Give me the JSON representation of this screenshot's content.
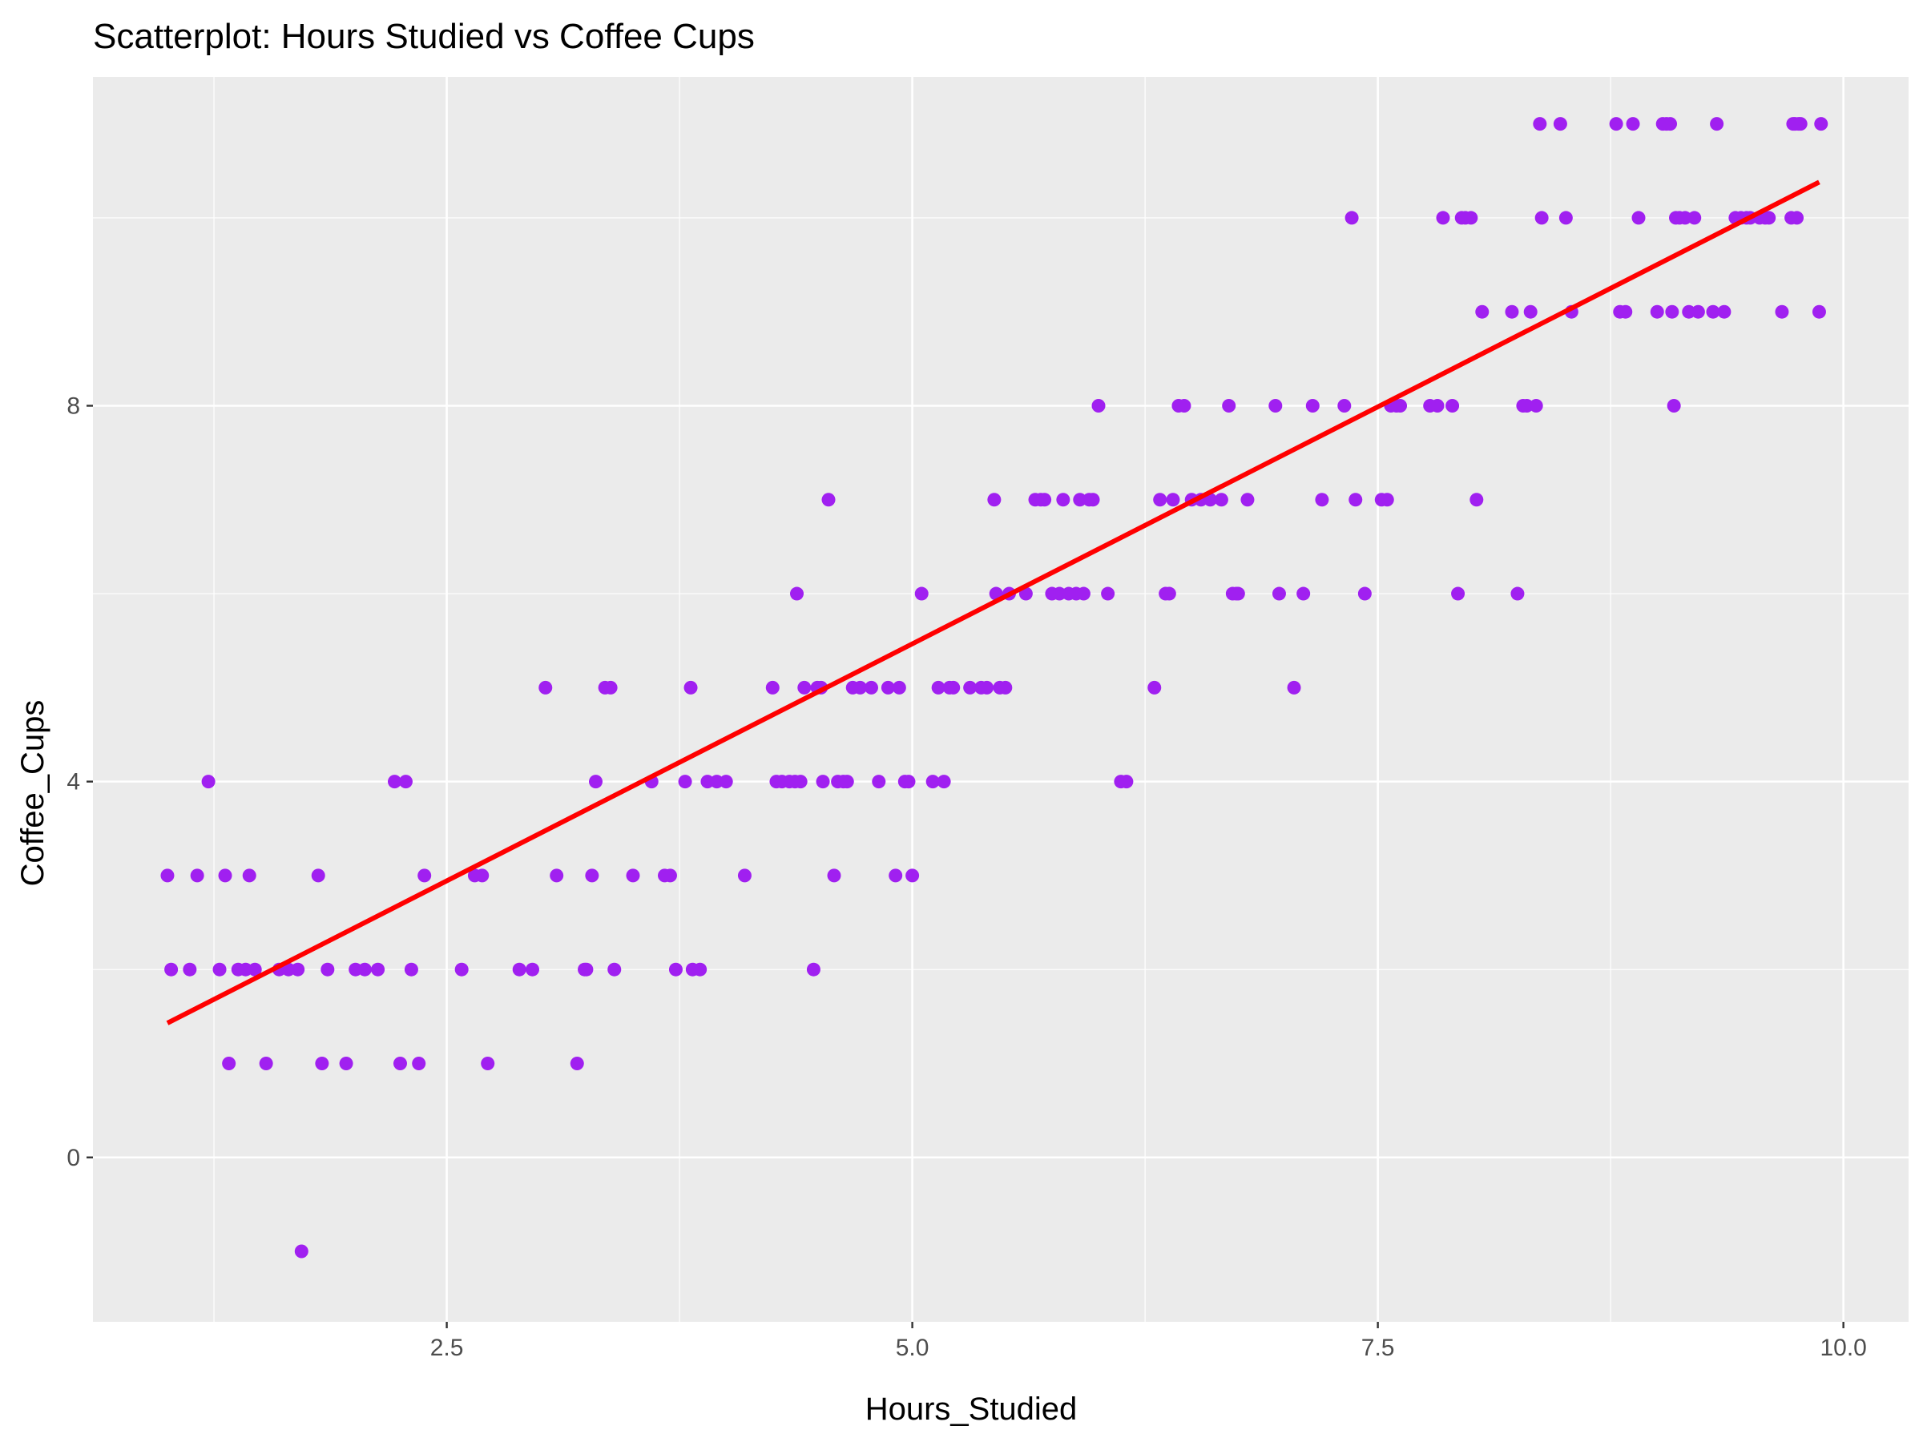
{
  "chart_data": {
    "type": "scatter",
    "title": "Scatterplot: Hours Studied vs Coffee Cups",
    "xlabel": "Hours_Studied",
    "ylabel": "Coffee_Cups",
    "xlim": [
      0.6,
      10.35
    ],
    "ylim": [
      -1.75,
      11.5
    ],
    "x_ticks": [
      2.5,
      5.0,
      7.5,
      10.0
    ],
    "x_tick_labels": [
      "2.5",
      "5.0",
      "7.5",
      "10.0"
    ],
    "y_ticks": [
      0,
      4,
      8
    ],
    "y_tick_labels": [
      "0",
      "4",
      "8"
    ],
    "grid": true,
    "legend": "none",
    "colors": {
      "panel": "#ebebeb",
      "grid": "#ffffff",
      "points": "#a020f0",
      "fit_line": "#ff0000",
      "tick": "#333333"
    },
    "series": [
      {
        "kind": "points",
        "points": [
          [
            1.0,
            3
          ],
          [
            1.02,
            2
          ],
          [
            1.12,
            2
          ],
          [
            1.16,
            3
          ],
          [
            1.22,
            4
          ],
          [
            1.28,
            2
          ],
          [
            1.31,
            3
          ],
          [
            1.33,
            1
          ],
          [
            1.38,
            2
          ],
          [
            1.42,
            2
          ],
          [
            1.44,
            3
          ],
          [
            1.47,
            2
          ],
          [
            1.53,
            1
          ],
          [
            1.6,
            2
          ],
          [
            1.65,
            2
          ],
          [
            1.7,
            2
          ],
          [
            1.72,
            -1
          ],
          [
            1.81,
            3
          ],
          [
            1.83,
            1
          ],
          [
            1.86,
            2
          ],
          [
            1.96,
            1
          ],
          [
            2.01,
            2
          ],
          [
            2.06,
            2
          ],
          [
            2.13,
            2
          ],
          [
            2.22,
            4
          ],
          [
            2.25,
            1
          ],
          [
            2.28,
            4
          ],
          [
            2.31,
            2
          ],
          [
            2.35,
            1
          ],
          [
            2.38,
            3
          ],
          [
            2.58,
            2
          ],
          [
            2.65,
            3
          ],
          [
            2.69,
            3
          ],
          [
            2.72,
            1
          ],
          [
            2.89,
            2
          ],
          [
            2.96,
            2
          ],
          [
            3.03,
            5
          ],
          [
            3.09,
            3
          ],
          [
            3.2,
            1
          ],
          [
            3.24,
            2
          ],
          [
            3.25,
            2
          ],
          [
            3.28,
            3
          ],
          [
            3.3,
            4
          ],
          [
            3.35,
            5
          ],
          [
            3.38,
            5
          ],
          [
            3.4,
            2
          ],
          [
            3.5,
            3
          ],
          [
            3.6,
            4
          ],
          [
            3.67,
            3
          ],
          [
            3.7,
            3
          ],
          [
            3.73,
            2
          ],
          [
            3.78,
            4
          ],
          [
            3.81,
            5
          ],
          [
            3.82,
            2
          ],
          [
            3.86,
            2
          ],
          [
            3.9,
            4
          ],
          [
            3.95,
            4
          ],
          [
            4.0,
            4
          ],
          [
            4.1,
            3
          ],
          [
            4.25,
            5
          ],
          [
            4.27,
            4
          ],
          [
            4.3,
            4
          ],
          [
            4.34,
            4
          ],
          [
            4.37,
            4
          ],
          [
            4.38,
            6
          ],
          [
            4.4,
            4
          ],
          [
            4.42,
            5
          ],
          [
            4.47,
            2
          ],
          [
            4.49,
            5
          ],
          [
            4.51,
            5
          ],
          [
            4.52,
            4
          ],
          [
            4.55,
            7
          ],
          [
            4.58,
            3
          ],
          [
            4.6,
            4
          ],
          [
            4.63,
            4
          ],
          [
            4.65,
            4
          ],
          [
            4.68,
            5
          ],
          [
            4.72,
            5
          ],
          [
            4.78,
            5
          ],
          [
            4.82,
            4
          ],
          [
            4.87,
            5
          ],
          [
            4.91,
            3
          ],
          [
            4.93,
            5
          ],
          [
            4.96,
            4
          ],
          [
            4.98,
            4
          ],
          [
            5.0,
            3
          ],
          [
            5.05,
            6
          ],
          [
            5.11,
            4
          ],
          [
            5.14,
            5
          ],
          [
            5.17,
            4
          ],
          [
            5.2,
            5
          ],
          [
            5.22,
            5
          ],
          [
            5.31,
            5
          ],
          [
            5.37,
            5
          ],
          [
            5.4,
            5
          ],
          [
            5.44,
            7
          ],
          [
            5.45,
            6
          ],
          [
            5.47,
            5
          ],
          [
            5.5,
            5
          ],
          [
            5.52,
            6
          ],
          [
            5.61,
            6
          ],
          [
            5.66,
            7
          ],
          [
            5.69,
            7
          ],
          [
            5.71,
            7
          ],
          [
            5.75,
            6
          ],
          [
            5.79,
            6
          ],
          [
            5.81,
            7
          ],
          [
            5.84,
            6
          ],
          [
            5.88,
            6
          ],
          [
            5.9,
            7
          ],
          [
            5.92,
            6
          ],
          [
            5.95,
            7
          ],
          [
            5.97,
            7
          ],
          [
            6.0,
            8
          ],
          [
            6.05,
            6
          ],
          [
            6.12,
            4
          ],
          [
            6.15,
            4
          ],
          [
            6.3,
            5
          ],
          [
            6.33,
            7
          ],
          [
            6.36,
            6
          ],
          [
            6.38,
            6
          ],
          [
            6.4,
            7
          ],
          [
            6.43,
            8
          ],
          [
            6.46,
            8
          ],
          [
            6.5,
            7
          ],
          [
            6.55,
            7
          ],
          [
            6.6,
            7
          ],
          [
            6.66,
            7
          ],
          [
            6.7,
            8
          ],
          [
            6.72,
            6
          ],
          [
            6.74,
            6
          ],
          [
            6.75,
            6
          ],
          [
            6.8,
            7
          ],
          [
            6.95,
            8
          ],
          [
            6.97,
            6
          ],
          [
            7.05,
            5
          ],
          [
            7.1,
            6
          ],
          [
            7.15,
            8
          ],
          [
            7.2,
            7
          ],
          [
            7.32,
            8
          ],
          [
            7.36,
            10
          ],
          [
            7.38,
            7
          ],
          [
            7.43,
            6
          ],
          [
            7.52,
            7
          ],
          [
            7.55,
            7
          ],
          [
            7.57,
            8
          ],
          [
            7.6,
            8
          ],
          [
            7.62,
            8
          ],
          [
            7.78,
            8
          ],
          [
            7.82,
            8
          ],
          [
            7.85,
            10
          ],
          [
            7.9,
            8
          ],
          [
            7.93,
            6
          ],
          [
            7.95,
            10
          ],
          [
            7.97,
            10
          ],
          [
            8.0,
            10
          ],
          [
            8.03,
            7
          ],
          [
            8.06,
            9
          ],
          [
            8.22,
            9
          ],
          [
            8.25,
            6
          ],
          [
            8.28,
            8
          ],
          [
            8.3,
            8
          ],
          [
            8.32,
            9
          ],
          [
            8.35,
            8
          ],
          [
            8.37,
            11
          ],
          [
            8.38,
            10
          ],
          [
            8.48,
            11
          ],
          [
            8.51,
            10
          ],
          [
            8.54,
            9
          ],
          [
            8.78,
            11
          ],
          [
            8.8,
            9
          ],
          [
            8.83,
            9
          ],
          [
            8.87,
            11
          ],
          [
            8.9,
            10
          ],
          [
            9.0,
            9
          ],
          [
            9.03,
            11
          ],
          [
            9.05,
            11
          ],
          [
            9.07,
            11
          ],
          [
            9.08,
            9
          ],
          [
            9.09,
            8
          ],
          [
            9.1,
            10
          ],
          [
            9.12,
            10
          ],
          [
            9.15,
            10
          ],
          [
            9.17,
            9
          ],
          [
            9.2,
            10
          ],
          [
            9.22,
            9
          ],
          [
            9.3,
            9
          ],
          [
            9.32,
            11
          ],
          [
            9.36,
            9
          ],
          [
            9.42,
            10
          ],
          [
            9.45,
            10
          ],
          [
            9.48,
            10
          ],
          [
            9.5,
            10
          ],
          [
            9.55,
            10
          ],
          [
            9.58,
            10
          ],
          [
            9.6,
            10
          ],
          [
            9.67,
            9
          ],
          [
            9.72,
            10
          ],
          [
            9.73,
            11
          ],
          [
            9.74,
            11
          ],
          [
            9.75,
            10
          ],
          [
            9.76,
            11
          ],
          [
            9.77,
            11
          ],
          [
            9.87,
            9
          ],
          [
            9.88,
            11
          ]
        ]
      },
      {
        "kind": "fit_line",
        "x": [
          1.0,
          9.87
        ],
        "y": [
          1.43,
          10.38
        ]
      }
    ]
  }
}
